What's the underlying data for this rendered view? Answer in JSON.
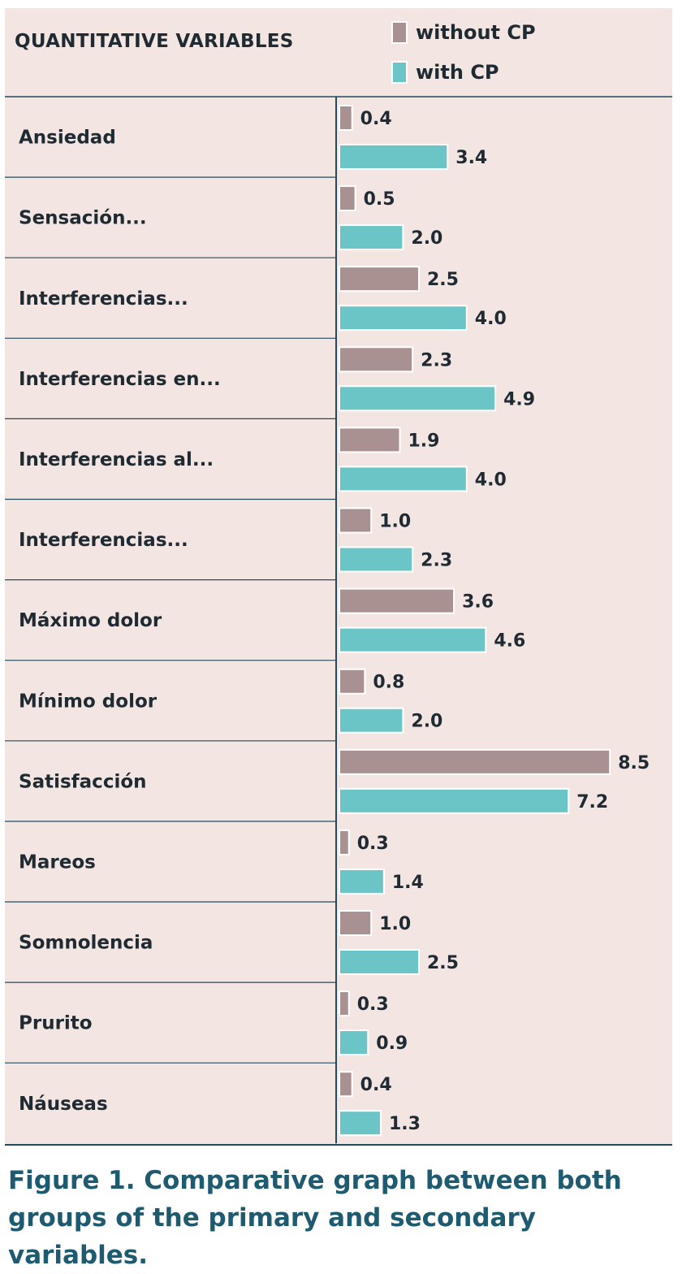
{
  "header": {
    "label": "QUANTITATIVE VARIABLES"
  },
  "caption": "Figure 1. Comparative graph between both groups of the primary and secondary variables.",
  "colors": {
    "without_cp": "#a89190",
    "with_cp": "#6bc4c6",
    "rule": "#234a5c",
    "background": "#f3e6e2",
    "caption": "#1e5a70"
  },
  "chart_data": {
    "type": "bar",
    "orientation": "horizontal",
    "categories": [
      "Ansiedad",
      "Sensación...",
      "Interferencias...",
      "Interferencias en...",
      "Interferencias al...",
      "Interferencias...",
      "Máximo dolor",
      "Mínimo dolor",
      "Satisfacción",
      "Mareos",
      "Somnolencia",
      "Prurito",
      "Náuseas"
    ],
    "series": [
      {
        "name": "without CP",
        "color": "#a89190",
        "values": [
          0.4,
          0.5,
          2.5,
          2.3,
          1.9,
          1.0,
          3.6,
          0.8,
          8.5,
          0.3,
          1.0,
          0.3,
          0.4
        ],
        "labels": [
          "0.4",
          "0.5",
          "2.5",
          "2.3",
          "1.9",
          "1.0",
          "3.6",
          "0.8",
          "8.5",
          "0.3",
          "1.0",
          "0.3",
          "0.4"
        ]
      },
      {
        "name": "with CP",
        "color": "#6bc4c6",
        "values": [
          3.4,
          2.0,
          4.0,
          4.9,
          4.0,
          2.3,
          4.6,
          2.0,
          7.2,
          1.4,
          2.5,
          0.9,
          1.3
        ],
        "labels": [
          "3.4",
          "2.0",
          "4.0",
          "4.9",
          "4.0",
          "2.3",
          "4.6",
          "2.0",
          "7.2",
          "1.4",
          "2.5",
          "0.9",
          "1.3"
        ]
      }
    ],
    "xlim": [
      0,
      10
    ],
    "legend": "top-right",
    "grid": false
  }
}
